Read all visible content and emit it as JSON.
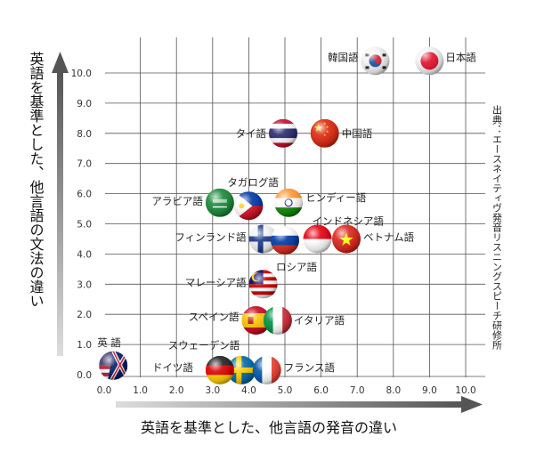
{
  "chart_data": {
    "type": "scatter",
    "xlabel": "英語を基準とした、他言語の発音の違い",
    "ylabel": "英語を基準とした、他言語の文法の違い",
    "source_note": "出典：エースネイティヴ発音リスニングスピーチ研修所",
    "xlim": [
      0,
      10
    ],
    "ylim": [
      0,
      10.5
    ],
    "x_ticks": [
      "0.0",
      "1.0",
      "2.0",
      "3.0",
      "4.0",
      "5.0",
      "6.0",
      "7.0",
      "8.0",
      "9.0",
      "10.0"
    ],
    "y_ticks": [
      "0.0",
      "1.0",
      "2.0",
      "3.0",
      "4.0",
      "5.0",
      "6.0",
      "7.0",
      "8.0",
      "9.0",
      "10.0"
    ],
    "grid": true,
    "points": [
      {
        "label": "日本語",
        "flag": "japan",
        "x": 9.0,
        "y": 10.4
      },
      {
        "label": "韓国語",
        "flag": "korea",
        "x": 7.5,
        "y": 10.4
      },
      {
        "label": "タイ語",
        "flag": "thailand",
        "x": 4.95,
        "y": 8.0
      },
      {
        "label": "中国語",
        "flag": "china",
        "x": 6.1,
        "y": 8.0
      },
      {
        "label": "タガログ語",
        "flag": "philippines",
        "x": 4.0,
        "y": 5.6
      },
      {
        "label": "アラビア語",
        "flag": "saudi-arabia",
        "x": 3.2,
        "y": 5.7
      },
      {
        "label": "ヒンディー語",
        "flag": "india",
        "x": 5.1,
        "y": 5.7
      },
      {
        "label": "インドネシア語",
        "flag": "indonesia",
        "x": 5.9,
        "y": 4.5
      },
      {
        "label": "フィンランド語",
        "flag": "finland",
        "x": 4.4,
        "y": 4.5
      },
      {
        "label": "ロシア語",
        "flag": "russia",
        "x": 5.0,
        "y": 4.45
      },
      {
        "label": "ベトナム語",
        "flag": "vietnam",
        "x": 6.7,
        "y": 4.5
      },
      {
        "label": "マレーシア語",
        "flag": "malaysia",
        "x": 4.4,
        "y": 3.0
      },
      {
        "label": "スペイン語",
        "flag": "spain",
        "x": 4.2,
        "y": 1.8
      },
      {
        "label": "イタリア語",
        "flag": "italy",
        "x": 4.8,
        "y": 1.8
      },
      {
        "label": "英 語",
        "flag": "us-uk",
        "x": 0.25,
        "y": 0.3
      },
      {
        "label": "スウェーデン語",
        "flag": "sweden",
        "x": 3.8,
        "y": 0.15
      },
      {
        "label": "ドイツ語",
        "flag": "germany",
        "x": 3.2,
        "y": 0.15
      },
      {
        "label": "フランス語",
        "flag": "france",
        "x": 4.5,
        "y": 0.15
      }
    ]
  }
}
